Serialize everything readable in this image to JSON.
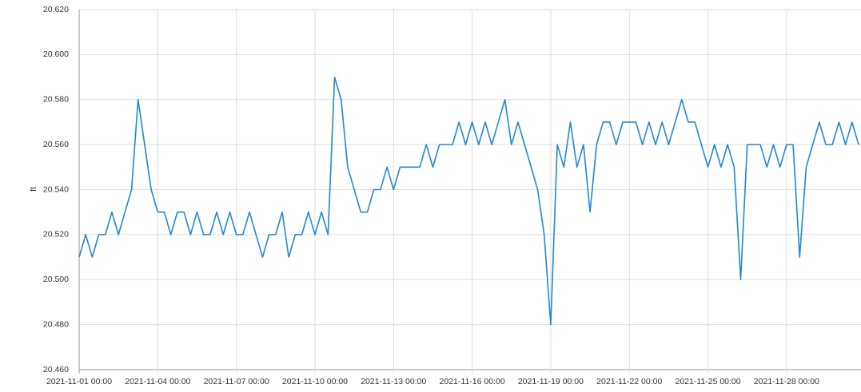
{
  "chart_data": {
    "type": "line",
    "ylabel": "ft",
    "x": [
      "2021-11-01 00:00",
      "2021-11-01 06:00",
      "2021-11-01 12:00",
      "2021-11-01 18:00",
      "2021-11-02 00:00",
      "2021-11-02 06:00",
      "2021-11-02 12:00",
      "2021-11-02 18:00",
      "2021-11-03 00:00",
      "2021-11-03 06:00",
      "2021-11-03 12:00",
      "2021-11-03 18:00",
      "2021-11-04 00:00",
      "2021-11-04 06:00",
      "2021-11-04 12:00",
      "2021-11-04 18:00",
      "2021-11-05 00:00",
      "2021-11-05 06:00",
      "2021-11-05 12:00",
      "2021-11-05 18:00",
      "2021-11-06 00:00",
      "2021-11-06 06:00",
      "2021-11-06 12:00",
      "2021-11-06 18:00",
      "2021-11-07 00:00",
      "2021-11-07 06:00",
      "2021-11-07 12:00",
      "2021-11-07 18:00",
      "2021-11-08 00:00",
      "2021-11-08 06:00",
      "2021-11-08 12:00",
      "2021-11-08 18:00",
      "2021-11-09 00:00",
      "2021-11-09 06:00",
      "2021-11-09 12:00",
      "2021-11-09 18:00",
      "2021-11-10 00:00",
      "2021-11-10 06:00",
      "2021-11-10 12:00",
      "2021-11-10 18:00",
      "2021-11-11 00:00",
      "2021-11-11 06:00",
      "2021-11-11 12:00",
      "2021-11-11 18:00",
      "2021-11-12 00:00",
      "2021-11-12 06:00",
      "2021-11-12 12:00",
      "2021-11-12 18:00",
      "2021-11-13 00:00",
      "2021-11-13 06:00",
      "2021-11-13 12:00",
      "2021-11-13 18:00",
      "2021-11-14 00:00",
      "2021-11-14 06:00",
      "2021-11-14 12:00",
      "2021-11-14 18:00",
      "2021-11-15 00:00",
      "2021-11-15 06:00",
      "2021-11-15 12:00",
      "2021-11-15 18:00",
      "2021-11-16 00:00",
      "2021-11-16 06:00",
      "2021-11-16 12:00",
      "2021-11-16 18:00",
      "2021-11-17 00:00",
      "2021-11-17 06:00",
      "2021-11-17 12:00",
      "2021-11-17 18:00",
      "2021-11-18 00:00",
      "2021-11-18 06:00",
      "2021-11-18 12:00",
      "2021-11-18 18:00",
      "2021-11-19 00:00",
      "2021-11-19 06:00",
      "2021-11-19 12:00",
      "2021-11-19 18:00",
      "2021-11-20 00:00",
      "2021-11-20 06:00",
      "2021-11-20 12:00",
      "2021-11-20 18:00",
      "2021-11-21 00:00",
      "2021-11-21 06:00",
      "2021-11-21 12:00",
      "2021-11-21 18:00",
      "2021-11-22 00:00",
      "2021-11-22 06:00",
      "2021-11-22 12:00",
      "2021-11-22 18:00",
      "2021-11-23 00:00",
      "2021-11-23 06:00",
      "2021-11-23 12:00",
      "2021-11-23 18:00",
      "2021-11-24 00:00",
      "2021-11-24 06:00",
      "2021-11-24 12:00",
      "2021-11-24 18:00",
      "2021-11-25 00:00",
      "2021-11-25 06:00",
      "2021-11-25 12:00",
      "2021-11-25 18:00",
      "2021-11-26 00:00",
      "2021-11-26 06:00",
      "2021-11-26 12:00",
      "2021-11-26 18:00",
      "2021-11-27 00:00",
      "2021-11-27 06:00",
      "2021-11-27 12:00",
      "2021-11-27 18:00",
      "2021-11-28 00:00",
      "2021-11-28 06:00",
      "2021-11-28 12:00",
      "2021-11-28 18:00",
      "2021-11-29 00:00",
      "2021-11-29 06:00",
      "2021-11-29 12:00",
      "2021-11-29 18:00",
      "2021-11-30 00:00",
      "2021-11-30 06:00",
      "2021-11-30 12:00",
      "2021-11-30 18:00"
    ],
    "series": [
      {
        "name": "ft",
        "color": "#1f88d6",
        "values": [
          20.51,
          20.52,
          20.51,
          20.52,
          20.52,
          20.53,
          20.52,
          20.53,
          20.54,
          20.58,
          20.56,
          20.54,
          20.53,
          20.53,
          20.52,
          20.53,
          20.53,
          20.52,
          20.53,
          20.52,
          20.52,
          20.53,
          20.52,
          20.53,
          20.52,
          20.52,
          20.53,
          20.52,
          20.51,
          20.52,
          20.52,
          20.53,
          20.51,
          20.52,
          20.52,
          20.53,
          20.52,
          20.53,
          20.52,
          20.59,
          20.58,
          20.55,
          20.54,
          20.53,
          20.53,
          20.54,
          20.54,
          20.55,
          20.54,
          20.55,
          20.55,
          20.55,
          20.55,
          20.56,
          20.55,
          20.56,
          20.56,
          20.56,
          20.57,
          20.56,
          20.57,
          20.56,
          20.57,
          20.56,
          20.57,
          20.58,
          20.56,
          20.57,
          20.56,
          20.55,
          20.54,
          20.52,
          20.48,
          20.56,
          20.55,
          20.57,
          20.55,
          20.56,
          20.53,
          20.56,
          20.57,
          20.57,
          20.56,
          20.57,
          20.57,
          20.57,
          20.56,
          20.57,
          20.56,
          20.57,
          20.56,
          20.57,
          20.58,
          20.57,
          20.57,
          20.56,
          20.55,
          20.56,
          20.55,
          20.56,
          20.55,
          20.5,
          20.56,
          20.56,
          20.56,
          20.55,
          20.56,
          20.55,
          20.56,
          20.56,
          20.51,
          20.55,
          20.56,
          20.57,
          20.56,
          20.56,
          20.57,
          20.56,
          20.57,
          20.56
        ]
      }
    ],
    "xlim": [
      "2021-11-01 00:00",
      "2021-11-30 18:00"
    ],
    "xticks": [
      "2021-11-01 00:00",
      "2021-11-04 00:00",
      "2021-11-07 00:00",
      "2021-11-10 00:00",
      "2021-11-13 00:00",
      "2021-11-16 00:00",
      "2021-11-19 00:00",
      "2021-11-22 00:00",
      "2021-11-25 00:00",
      "2021-11-28 00:00"
    ],
    "ylim": [
      20.46,
      20.62
    ],
    "yticks": [
      {
        "value": 20.46,
        "label": "20.460"
      },
      {
        "value": 20.48,
        "label": "20.480"
      },
      {
        "value": 20.5,
        "label": "20.500"
      },
      {
        "value": 20.52,
        "label": "20.520"
      },
      {
        "value": 20.54,
        "label": "20.540"
      },
      {
        "value": 20.56,
        "label": "20.560"
      },
      {
        "value": 20.58,
        "label": "20.580"
      },
      {
        "value": 20.6,
        "label": "20.600"
      },
      {
        "value": 20.62,
        "label": "20.620"
      }
    ],
    "grid": true
  }
}
